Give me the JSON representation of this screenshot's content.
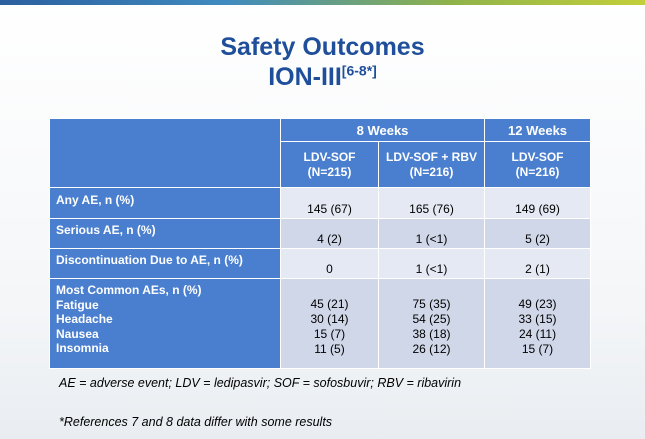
{
  "slide": {
    "title": "Safety Outcomes",
    "subtitle": "ION-III",
    "subtitle_ref": "[6-8*]"
  },
  "table": {
    "groups": [
      "8 Weeks",
      "12 Weeks"
    ],
    "columns": [
      "LDV-SOF\n(N=215)",
      "LDV-SOF + RBV\n(N=216)",
      "LDV-SOF\n(N=216)"
    ],
    "rows": [
      {
        "label": "Any AE, n (%)",
        "values": [
          "145 (67)",
          "165 (76)",
          "149 (69)"
        ]
      },
      {
        "label": "Serious AE, n (%)",
        "values": [
          "4 (2)",
          "1 (<1)",
          "5 (2)"
        ]
      },
      {
        "label": "Discontinuation Due to AE, n (%)",
        "values": [
          "0",
          "1 (<1)",
          "2 (1)"
        ]
      }
    ],
    "common_header": "Most Common AEs, n (%)",
    "common": [
      {
        "label": "Fatigue",
        "values": [
          "45 (21)",
          "75 (35)",
          "49 (23)"
        ]
      },
      {
        "label": "Headache",
        "values": [
          "30 (14)",
          "54 (25)",
          "33 (15)"
        ]
      },
      {
        "label": "Nausea",
        "values": [
          "15 (7)",
          "38 (18)",
          "24 (11)"
        ]
      },
      {
        "label": "Insomnia",
        "values": [
          "11 (5)",
          "26 (12)",
          "15 (7)"
        ]
      }
    ]
  },
  "footnotes": {
    "abbrev": "AE = adverse event; LDV = ledipasvir; SOF = sofosbuvir; RBV = ribavirin",
    "refs": "*References 7 and 8 data differ with some results"
  },
  "colors": {
    "title": "#1f4e9a",
    "header_bg": "#4a7fcf",
    "cell_light": "#e4e9f3",
    "cell_dark": "#cfd7e8"
  }
}
